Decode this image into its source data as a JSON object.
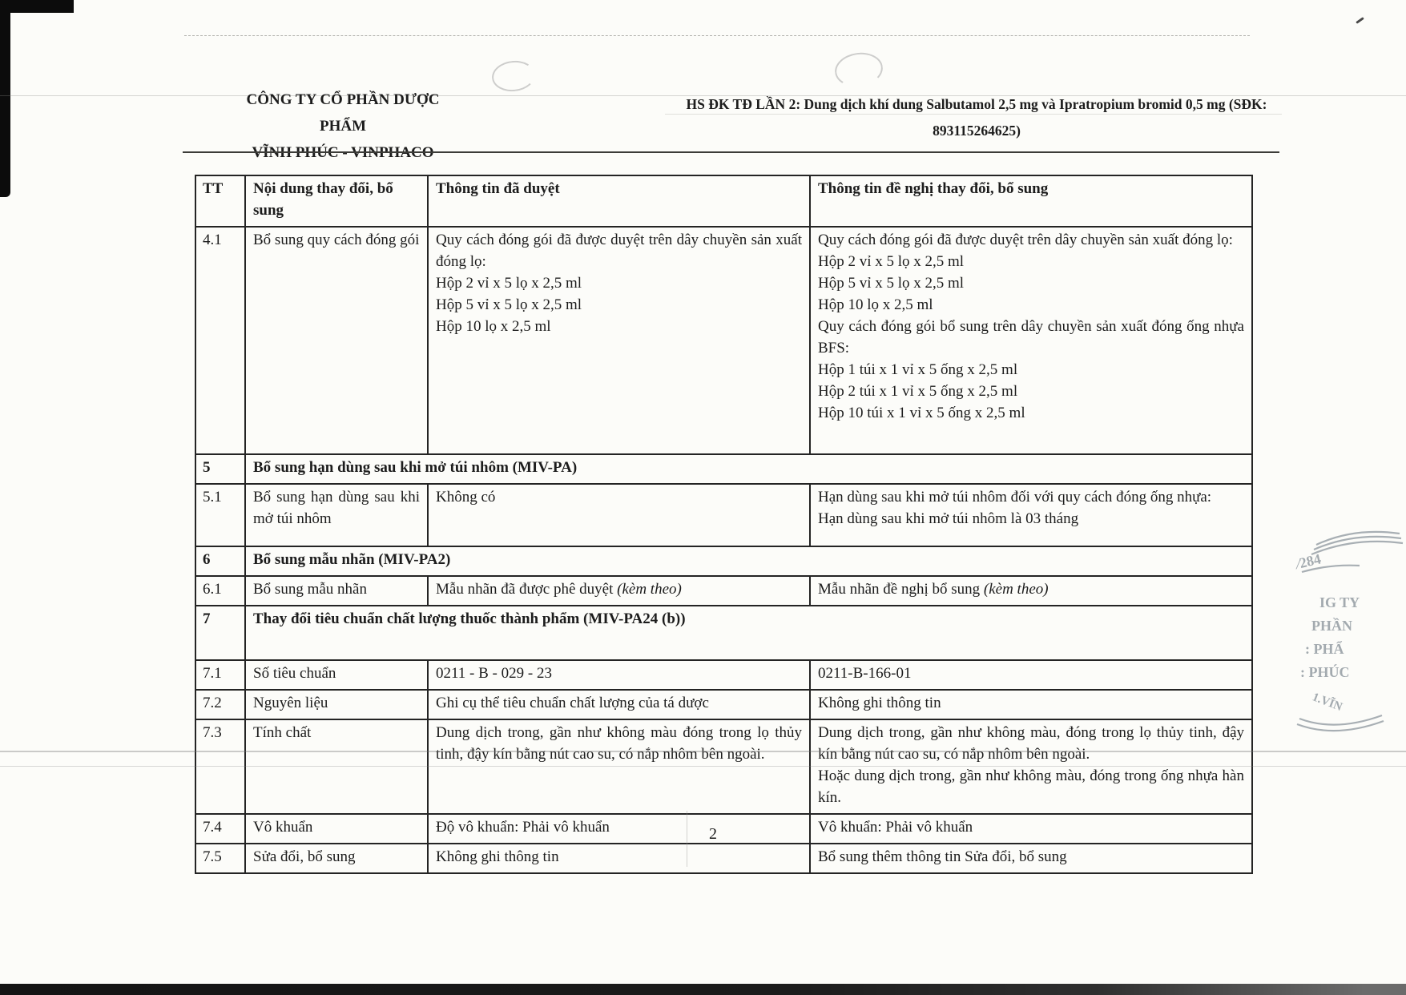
{
  "header": {
    "company_line1": "CÔNG TY CỔ PHẦN DƯỢC PHẨM",
    "company_line2": "VĨNH PHÚC - VINPHACO",
    "dossier_line1": "HS ĐK TĐ LẦN 2: Dung dịch khí dung Salbutamol 2,5 mg và Ipratropium bromid 0,5 mg (SĐK:",
    "dossier_line2": "893115264625)"
  },
  "table": {
    "columns": [
      "TT",
      "Nội dung thay đổi, bổ sung",
      "Thông tin đã duyệt",
      "Thông tin đề nghị thay đổi, bổ sung"
    ],
    "rows": [
      {
        "tt": "4.1",
        "kind": "data",
        "change": "Bổ sung quy cách đóng gói",
        "approved": [
          "Quy cách đóng gói đã được duyệt trên dây chuyền sản xuất đóng lọ:",
          "Hộp 2 vỉ x 5 lọ x 2,5 ml",
          "Hộp 5 vỉ x 5 lọ x 2,5 ml",
          "Hộp 10 lọ x 2,5 ml"
        ],
        "proposed": [
          "Quy cách đóng gói đã được duyệt trên dây chuyền sản xuất đóng lọ:",
          "Hộp 2 vỉ x 5 lọ x 2,5 ml",
          "Hộp 5 vỉ x 5 lọ x 2,5 ml",
          "Hộp 10 lọ x 2,5 ml",
          "Quy cách đóng gói bổ sung trên dây chuyền sản xuất đóng ống nhựa BFS:",
          "Hộp 1 túi x 1 vỉ x 5 ống x 2,5 ml",
          "Hộp 2 túi x 1 vỉ x 5 ống x 2,5 ml",
          "Hộp 10 túi x 1 vỉ x 5 ống x 2,5 ml"
        ]
      },
      {
        "tt": "5",
        "kind": "section",
        "title": "Bổ sung hạn dùng sau khi mở túi nhôm (MIV-PA)"
      },
      {
        "tt": "5.1",
        "kind": "data",
        "change": "Bổ sung hạn dùng sau khi mở túi nhôm",
        "approved": [
          "Không có"
        ],
        "proposed": [
          "Hạn dùng sau khi mở túi nhôm đối với quy cách đóng ống nhựa:",
          "Hạn dùng sau khi mở túi nhôm là 03 tháng"
        ]
      },
      {
        "tt": "6",
        "kind": "section",
        "title": "Bổ sung mẫu nhãn (MIV-PA2)"
      },
      {
        "tt": "6.1",
        "kind": "data",
        "change": "Bổ sung mẫu nhãn",
        "approved": [
          [
            {
              "t": "Mẫu nhãn đã được phê duyệt "
            },
            {
              "t": "(kèm theo)",
              "i": true
            }
          ]
        ],
        "proposed": [
          [
            {
              "t": "Mẫu nhãn đề nghị bổ sung "
            },
            {
              "t": "(kèm theo)",
              "i": true
            }
          ]
        ]
      },
      {
        "tt": "7",
        "kind": "section",
        "title": "Thay đổi tiêu chuẩn chất lượng thuốc thành phẩm (MIV-PA24 (b))"
      },
      {
        "tt": "7.1",
        "kind": "data",
        "change": "Số tiêu chuẩn",
        "approved": [
          "0211 - B - 029 - 23"
        ],
        "proposed": [
          "0211-B-166-01"
        ]
      },
      {
        "tt": "7.2",
        "kind": "data",
        "change": "Nguyên liệu",
        "approved": [
          "Ghi cụ thể tiêu chuẩn chất lượng của tá dược"
        ],
        "proposed": [
          "Không ghi thông tin"
        ]
      },
      {
        "tt": "7.3",
        "kind": "data",
        "change": "Tính chất",
        "approved": [
          "Dung dịch trong, gần như không màu đóng trong lọ thủy tinh, đậy kín bằng nút cao su, có nắp nhôm bên ngoài."
        ],
        "proposed": [
          "Dung dịch trong, gần như không màu,  đóng trong lọ thủy tinh, đậy kín bằng nút cao su, có nắp nhôm bên ngoài.",
          "Hoặc dung dịch trong, gần như không màu, đóng trong ống nhựa hàn kín."
        ]
      },
      {
        "tt": "7.4",
        "kind": "data",
        "change": "Vô khuẩn",
        "approved": [
          "Độ vô khuẩn: Phải vô khuẩn"
        ],
        "proposed": [
          "Vô khuẩn: Phải vô khuẩn"
        ]
      },
      {
        "tt": "7.5",
        "kind": "data",
        "change": "Sửa đổi, bổ sung",
        "approved": [
          "Không ghi thông tin"
        ],
        "proposed": [
          "Bổ sung thêm thông tin Sửa đổi, bổ sung"
        ]
      }
    ]
  },
  "footer": {
    "page_number": "2"
  },
  "stamp": {
    "fragments": [
      "⁄284",
      "IG TY",
      "PHẦN",
      ": PHẨ",
      ": PHÚC",
      "1.VĨN"
    ]
  },
  "colors": {
    "ink": "#1c1c1c",
    "table_border": "#242424",
    "paper": "#fcfcf9",
    "stamp": "#9aa2a8"
  }
}
